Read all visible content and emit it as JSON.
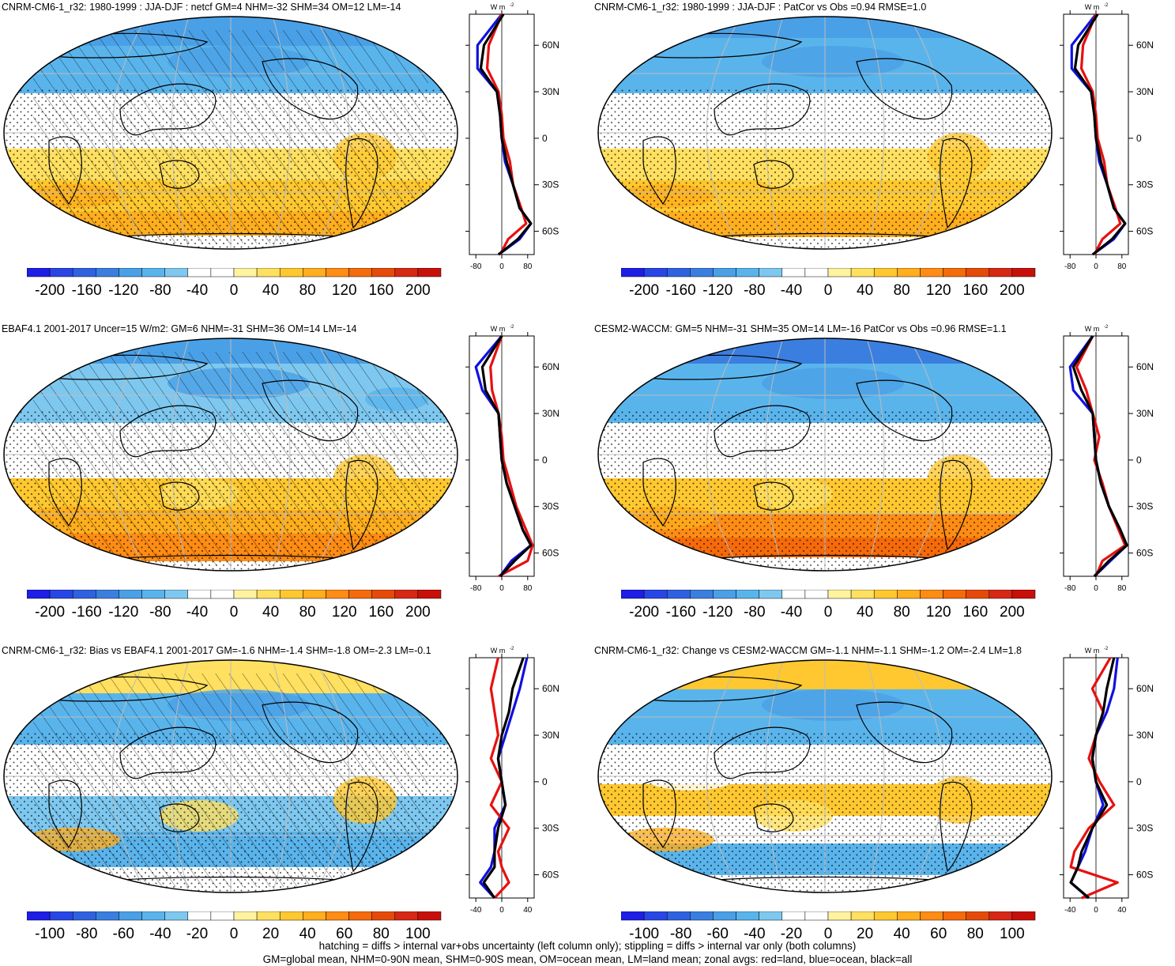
{
  "panels": [
    {
      "title": "CNRM-CM6-1_r32: 1980-1999 : JJA-DJF : netcf GM=4 NHM=-32 SHM=34 OM=12 LM=-14",
      "hatch": true,
      "cbar": [
        "-200",
        "-160",
        "-120",
        "-80",
        "-40",
        "0",
        "40",
        "80",
        "120",
        "160",
        "200"
      ],
      "zonal_ticks": [
        "-80",
        "0",
        "80"
      ],
      "lat_labels": [
        "60N",
        "30N",
        "0",
        "30S",
        "60S"
      ],
      "units": "W m",
      "units_sup": "-2"
    },
    {
      "title": "CNRM-CM6-1_r32: 1980-1999 : JJA-DJF : PatCor vs Obs =0.94 RMSE=1.0",
      "hatch": false,
      "cbar": [
        "-200",
        "-160",
        "-120",
        "-80",
        "-40",
        "0",
        "40",
        "80",
        "120",
        "160",
        "200"
      ],
      "zonal_ticks": [
        "-80",
        "0",
        "80"
      ],
      "lat_labels": [
        "60N",
        "30N",
        "0",
        "30S",
        "60S"
      ],
      "units": "W m",
      "units_sup": "-2"
    },
    {
      "title": "EBAF4.1 2001-2017 Uncer=15 W/m2: GM=6 NHM=-31 SHM=36 OM=14 LM=-14",
      "hatch": true,
      "cbar": [
        "-200",
        "-160",
        "-120",
        "-80",
        "-40",
        "0",
        "40",
        "80",
        "120",
        "160",
        "200"
      ],
      "zonal_ticks": [
        "-80",
        "0",
        "80"
      ],
      "lat_labels": [
        "60N",
        "30N",
        "0",
        "30S",
        "60S"
      ],
      "units": "W m",
      "units_sup": "-2"
    },
    {
      "title": "CESM2-WACCM: GM=5 NHM=-31 SHM=35 OM=14 LM=-16 PatCor vs Obs =0.96 RMSE=1.1",
      "hatch": false,
      "cbar": [
        "-200",
        "-160",
        "-120",
        "-80",
        "-40",
        "0",
        "40",
        "80",
        "120",
        "160",
        "200"
      ],
      "zonal_ticks": [
        "-80",
        "0",
        "80"
      ],
      "lat_labels": [
        "60N",
        "30N",
        "0",
        "30S",
        "60S"
      ],
      "units": "W m",
      "units_sup": "-2"
    },
    {
      "title": "CNRM-CM6-1_r32: Bias vs EBAF4.1 2001-2017 GM=-1.6 NHM=-1.4 SHM=-1.8 OM=-2.3 LM=-0.1",
      "hatch": true,
      "cbar": [
        "-100",
        "-80",
        "-60",
        "-40",
        "-20",
        "0",
        "20",
        "40",
        "60",
        "80",
        "100"
      ],
      "zonal_ticks": [
        "-40",
        "0",
        "40"
      ],
      "lat_labels": [
        "60N",
        "30N",
        "0",
        "30S",
        "60S"
      ],
      "units": "W m",
      "units_sup": "-2"
    },
    {
      "title": "CNRM-CM6-1_r32: Change vs CESM2-WACCM GM=-1.1 NHM=-1.1 SHM=-1.2 OM=-2.4 LM=1.8",
      "hatch": false,
      "cbar": [
        "-100",
        "-80",
        "-60",
        "-40",
        "-20",
        "0",
        "20",
        "40",
        "60",
        "80",
        "100"
      ],
      "zonal_ticks": [
        "-40",
        "0",
        "40"
      ],
      "lat_labels": [
        "60N",
        "30N",
        "0",
        "30S",
        "60S"
      ],
      "units": "W m",
      "units_sup": "-2"
    }
  ],
  "colors": [
    "#1e1ee6",
    "#2846e6",
    "#2e62e0",
    "#3a7fe0",
    "#4aa0e6",
    "#5ab4ec",
    "#7ec8f0",
    "#ffffff",
    "#ffffff",
    "#fff3a0",
    "#ffe060",
    "#ffc830",
    "#ffae1e",
    "#ff8c14",
    "#f56a0a",
    "#e64a0a",
    "#d62814",
    "#c8100a"
  ],
  "footer": {
    "line1": "hatching = diffs > internal var+obs uncertainty (left column only); stippling = diffs > internal var only (both columns)",
    "line2": "GM=global mean, NHM=0-90N mean, SHM=0-90S mean, OM=ocean mean, LM=land mean; zonal avgs: red=land, blue=ocean, black=all"
  },
  "chart_data": [
    {
      "type": "heatmap",
      "title": "CNRM-CM6-1_r32: 1980-1999 : JJA-DJF : netcf GM=4 NHM=-32 SHM=34 OM=12 LM=-14",
      "colorbar": [
        -200,
        -160,
        -120,
        -80,
        -40,
        0,
        40,
        80,
        120,
        160,
        200
      ],
      "zonal_mean": {
        "xlim": [
          -100,
          100
        ],
        "lat": [
          80,
          60,
          45,
          30,
          15,
          0,
          -15,
          -30,
          -45,
          -55,
          -65,
          -75
        ],
        "all": [
          5,
          -55,
          -65,
          -15,
          -5,
          0,
          15,
          35,
          55,
          90,
          50,
          -10
        ],
        "land": [
          0,
          -40,
          -45,
          -10,
          0,
          5,
          25,
          35,
          60,
          75,
          20,
          -5
        ],
        "ocean": [
          0,
          -75,
          -75,
          -15,
          -5,
          0,
          10,
          35,
          55,
          90,
          55,
          -10
        ]
      }
    },
    {
      "type": "heatmap",
      "title": "CNRM-CM6-1_r32: 1980-1999 : JJA-DJF : PatCor vs Obs =0.94 RMSE=1.0",
      "colorbar": [
        -200,
        -160,
        -120,
        -80,
        -40,
        0,
        40,
        80,
        120,
        160,
        200
      ],
      "zonal_mean": {
        "xlim": [
          -100,
          100
        ],
        "lat": [
          80,
          60,
          45,
          30,
          15,
          0,
          -15,
          -30,
          -45,
          -55,
          -65,
          -75
        ],
        "all": [
          5,
          -55,
          -65,
          -15,
          -5,
          0,
          15,
          35,
          55,
          90,
          50,
          -10
        ],
        "land": [
          0,
          -40,
          -45,
          -10,
          0,
          5,
          25,
          35,
          60,
          75,
          20,
          -5
        ],
        "ocean": [
          0,
          -75,
          -75,
          -15,
          -5,
          0,
          10,
          35,
          55,
          90,
          55,
          -10
        ]
      }
    },
    {
      "type": "heatmap",
      "title": "EBAF4.1 2001-2017 Uncer=15 W/m2: GM=6 NHM=-31 SHM=36 OM=14 LM=-14",
      "colorbar": [
        -200,
        -160,
        -120,
        -80,
        -40,
        0,
        40,
        80,
        120,
        160,
        200
      ],
      "zonal_mean": {
        "xlim": [
          -100,
          100
        ],
        "lat": [
          80,
          60,
          45,
          30,
          15,
          0,
          -15,
          -30,
          -45,
          -55,
          -65,
          -75
        ],
        "all": [
          0,
          -60,
          -50,
          -10,
          -5,
          0,
          15,
          40,
          65,
          90,
          40,
          -5
        ],
        "land": [
          0,
          -35,
          -30,
          -10,
          0,
          5,
          25,
          45,
          75,
          95,
          80,
          -10
        ],
        "ocean": [
          0,
          -80,
          -60,
          -10,
          -5,
          0,
          15,
          40,
          65,
          90,
          30,
          -5
        ]
      }
    },
    {
      "type": "heatmap",
      "title": "CESM2-WACCM: GM=5 NHM=-31 SHM=35 OM=14 LM=-16 PatCor vs Obs =0.96 RMSE=1.1",
      "colorbar": [
        -200,
        -160,
        -120,
        -80,
        -40,
        0,
        40,
        80,
        120,
        160,
        200
      ],
      "zonal_mean": {
        "xlim": [
          -100,
          100
        ],
        "lat": [
          80,
          60,
          45,
          30,
          15,
          0,
          -15,
          -30,
          -45,
          -55,
          -65,
          -75
        ],
        "all": [
          -10,
          -70,
          -45,
          -10,
          -5,
          0,
          15,
          40,
          75,
          95,
          40,
          -5
        ],
        "land": [
          -10,
          -60,
          -30,
          -10,
          10,
          -5,
          20,
          40,
          70,
          90,
          20,
          0
        ],
        "ocean": [
          -10,
          -80,
          -70,
          -10,
          -5,
          0,
          15,
          40,
          75,
          95,
          45,
          -5
        ]
      }
    },
    {
      "type": "heatmap",
      "title": "CNRM-CM6-1_r32: Bias vs EBAF4.1 2001-2017 GM=-1.6 NHM=-1.4 SHM=-1.8 OM=-2.3 LM=-0.1",
      "colorbar": [
        -100,
        -80,
        -60,
        -40,
        -20,
        0,
        20,
        40,
        60,
        80,
        100
      ],
      "zonal_mean": {
        "xlim": [
          -45,
          45
        ],
        "lat": [
          80,
          60,
          45,
          30,
          15,
          0,
          -15,
          -30,
          -45,
          -55,
          -65,
          -75
        ],
        "all": [
          30,
          15,
          10,
          0,
          -5,
          0,
          5,
          -5,
          -10,
          -10,
          -25,
          -10
        ],
        "land": [
          -5,
          -15,
          -10,
          -5,
          -15,
          0,
          -15,
          10,
          -5,
          0,
          10,
          -10
        ],
        "ocean": [
          35,
          25,
          15,
          5,
          -5,
          0,
          5,
          -10,
          -10,
          -15,
          -30,
          -10
        ]
      }
    },
    {
      "type": "heatmap",
      "title": "CNRM-CM6-1_r32: Change vs CESM2-WACCM GM=-1.1 NHM=-1.1 SHM=-1.2 OM=-2.4 LM=1.8",
      "colorbar": [
        -100,
        -80,
        -60,
        -40,
        -20,
        0,
        20,
        40,
        60,
        80,
        100
      ],
      "zonal_mean": {
        "xlim": [
          -45,
          45
        ],
        "lat": [
          80,
          60,
          45,
          30,
          15,
          0,
          -15,
          -30,
          -45,
          -55,
          -65,
          -75
        ],
        "all": [
          25,
          15,
          10,
          0,
          -5,
          0,
          15,
          -5,
          -20,
          -25,
          -35,
          -10
        ],
        "land": [
          20,
          -5,
          10,
          0,
          -10,
          5,
          25,
          -10,
          -30,
          -35,
          30,
          -20
        ],
        "ocean": [
          30,
          25,
          15,
          0,
          -5,
          0,
          10,
          -5,
          -15,
          -25,
          -35,
          -10
        ]
      }
    }
  ]
}
